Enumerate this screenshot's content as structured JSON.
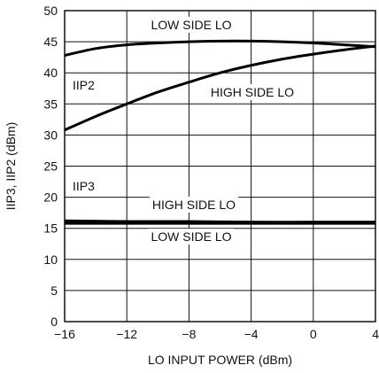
{
  "chart_data": {
    "type": "line",
    "xlabel": "LO INPUT POWER (dBm)",
    "ylabel": "IIP3, IIP2 (dBm)",
    "xlim": [
      -16,
      4
    ],
    "ylim": [
      0,
      50
    ],
    "x_ticks": [
      "−16",
      "−12",
      "−8",
      "−4",
      "0",
      "4"
    ],
    "y_ticks": [
      "0",
      "5",
      "10",
      "15",
      "20",
      "25",
      "30",
      "35",
      "40",
      "45",
      "50"
    ],
    "grid": true,
    "series": [
      {
        "name": "IIP2 LOW SIDE LO",
        "x": [
          -16,
          -14,
          -12,
          -10,
          -8,
          -6,
          -4,
          -2,
          0,
          2,
          4
        ],
        "y": [
          42.8,
          43.9,
          44.5,
          44.8,
          45.0,
          45.1,
          45.1,
          45.0,
          44.8,
          44.5,
          44.2
        ]
      },
      {
        "name": "IIP2 HIGH SIDE LO",
        "x": [
          -16,
          -14,
          -12,
          -10,
          -8,
          -6,
          -4,
          -2,
          0,
          2,
          4
        ],
        "y": [
          30.8,
          33.0,
          35.0,
          36.9,
          38.5,
          40.0,
          41.2,
          42.2,
          43.0,
          43.7,
          44.3
        ]
      },
      {
        "name": "IIP3 HIGH SIDE LO",
        "x": [
          -16,
          -12,
          -8,
          -4,
          0,
          4
        ],
        "y": [
          16.2,
          16.1,
          16.1,
          16.0,
          16.0,
          16.0
        ]
      },
      {
        "name": "IIP3 LOW SIDE LO",
        "x": [
          -16,
          -12,
          -8,
          -4,
          0,
          4
        ],
        "y": [
          15.8,
          15.8,
          15.8,
          15.8,
          15.8,
          15.8
        ]
      }
    ],
    "annotations": {
      "low_side_top": "LOW SIDE LO",
      "iip2": "IIP2",
      "high_side_mid": "HIGH SIDE LO",
      "iip3": "IIP3",
      "high_side_iip3": "HIGH SIDE LO",
      "low_side_iip3": "LOW SIDE LO"
    }
  }
}
